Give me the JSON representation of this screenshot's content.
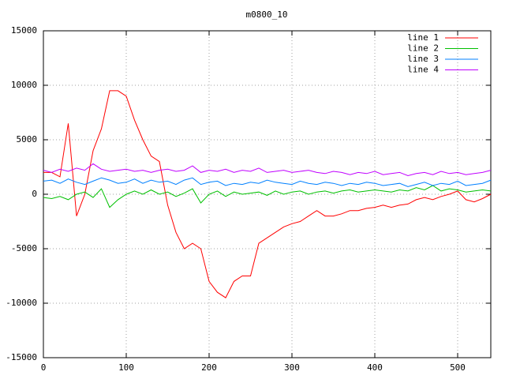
{
  "chart_data": {
    "type": "line",
    "title": "m0800_10",
    "x": [
      0,
      10,
      20,
      30,
      40,
      50,
      60,
      70,
      80,
      90,
      100,
      110,
      120,
      130,
      140,
      150,
      160,
      170,
      180,
      190,
      200,
      210,
      220,
      230,
      240,
      250,
      260,
      270,
      280,
      290,
      300,
      310,
      320,
      330,
      340,
      350,
      360,
      370,
      380,
      390,
      400,
      410,
      420,
      430,
      440,
      450,
      460,
      470,
      480,
      490,
      500,
      510,
      520,
      530,
      540
    ],
    "series": [
      {
        "name": "line 1",
        "color": "#ff0000",
        "values": [
          2000,
          2000,
          1600,
          6500,
          -2000,
          0,
          4000,
          6000,
          9500,
          9500,
          9000,
          6800,
          5000,
          3500,
          3000,
          -1000,
          -3500,
          -5000,
          -4500,
          -5000,
          -8000,
          -9000,
          -9500,
          -8000,
          -7500,
          -7500,
          -4500,
          -4000,
          -3500,
          -3000,
          -2700,
          -2500,
          -2000,
          -1500,
          -2000,
          -2000,
          -1800,
          -1500,
          -1500,
          -1300,
          -1200,
          -1000,
          -1200,
          -1000,
          -900,
          -500,
          -300,
          -500,
          -200,
          0,
          300,
          -500,
          -700,
          -400,
          0
        ]
      },
      {
        "name": "line 2",
        "color": "#00c000",
        "values": [
          -300,
          -400,
          -200,
          -500,
          0,
          200,
          -300,
          500,
          -1200,
          -500,
          0,
          300,
          0,
          400,
          0,
          200,
          -200,
          100,
          500,
          -800,
          0,
          300,
          -200,
          200,
          0,
          100,
          200,
          -100,
          300,
          0,
          200,
          300,
          0,
          200,
          300,
          100,
          300,
          400,
          200,
          300,
          400,
          300,
          200,
          400,
          300,
          600,
          400,
          800,
          300,
          500,
          400,
          200,
          300,
          400,
          300
        ]
      },
      {
        "name": "line 3",
        "color": "#0080ff",
        "values": [
          1200,
          1300,
          1000,
          1400,
          1100,
          900,
          1200,
          1500,
          1300,
          1000,
          1100,
          1400,
          1000,
          1300,
          1100,
          1200,
          900,
          1300,
          1500,
          900,
          1100,
          1200,
          800,
          1000,
          900,
          1100,
          1000,
          1300,
          1100,
          1000,
          900,
          1200,
          1000,
          900,
          1100,
          1000,
          800,
          1000,
          900,
          1100,
          1000,
          800,
          900,
          1000,
          700,
          900,
          1100,
          800,
          1000,
          900,
          1200,
          800,
          900,
          1000,
          1300
        ]
      },
      {
        "name": "line 4",
        "color": "#c000ff",
        "values": [
          2200,
          2000,
          2300,
          2100,
          2400,
          2200,
          2800,
          2300,
          2100,
          2200,
          2300,
          2100,
          2200,
          2000,
          2200,
          2300,
          2100,
          2200,
          2600,
          2000,
          2200,
          2100,
          2300,
          2000,
          2200,
          2100,
          2400,
          2000,
          2100,
          2200,
          2000,
          2100,
          2200,
          2000,
          1900,
          2100,
          2000,
          1800,
          2000,
          1900,
          2100,
          1800,
          1900,
          2000,
          1700,
          1900,
          2000,
          1800,
          2100,
          1900,
          2000,
          1800,
          1900,
          2000,
          2200
        ]
      }
    ],
    "xlim": [
      0,
      540
    ],
    "xticks": [
      0,
      100,
      200,
      300,
      400,
      500
    ],
    "ylim": [
      -15000,
      15000
    ],
    "yticks": [
      -15000,
      -10000,
      -5000,
      0,
      5000,
      10000,
      15000
    ],
    "grid": true,
    "legend": "upper right"
  }
}
